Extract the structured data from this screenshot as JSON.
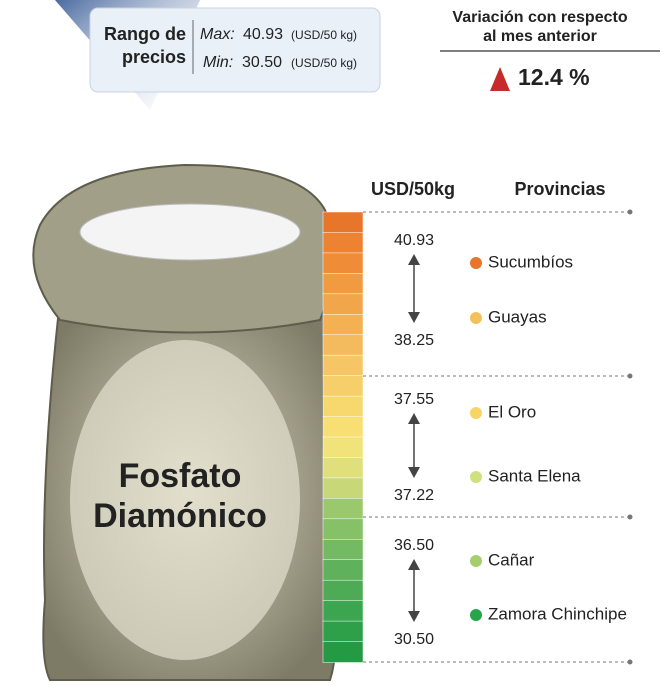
{
  "price_range": {
    "label_lines": [
      "Rango de",
      "precios"
    ],
    "max": {
      "label": "Max:",
      "value": "40.93",
      "unit": "(USD/50 kg)"
    },
    "min": {
      "label": "Min:",
      "value": "30.50",
      "unit": "(USD/50 kg)"
    }
  },
  "variation": {
    "title_lines": [
      "Variación con respecto",
      "al mes anterior"
    ],
    "value": "12.4 %"
  },
  "sack_label_lines": [
    "Fosfato",
    "Diamónico"
  ],
  "headers": {
    "price": "USD/50kg",
    "provinces": "Provincias"
  },
  "groups": [
    {
      "high": "40.93",
      "low": "38.25",
      "provinces": [
        {
          "name": "Sucumbíos",
          "color": "#e8762a"
        },
        {
          "name": "Guayas",
          "color": "#f2c25a"
        }
      ]
    },
    {
      "high": "37.55",
      "low": "37.22",
      "provinces": [
        {
          "name": "El Oro",
          "color": "#f6d565"
        },
        {
          "name": "Santa Elena",
          "color": "#cfe07e"
        }
      ]
    },
    {
      "high": "36.50",
      "low": "30.50",
      "provinces": [
        {
          "name": "Cañar",
          "color": "#a5cf6f"
        },
        {
          "name": "Zamora Chinchipe",
          "color": "#27a54a"
        }
      ]
    }
  ]
}
